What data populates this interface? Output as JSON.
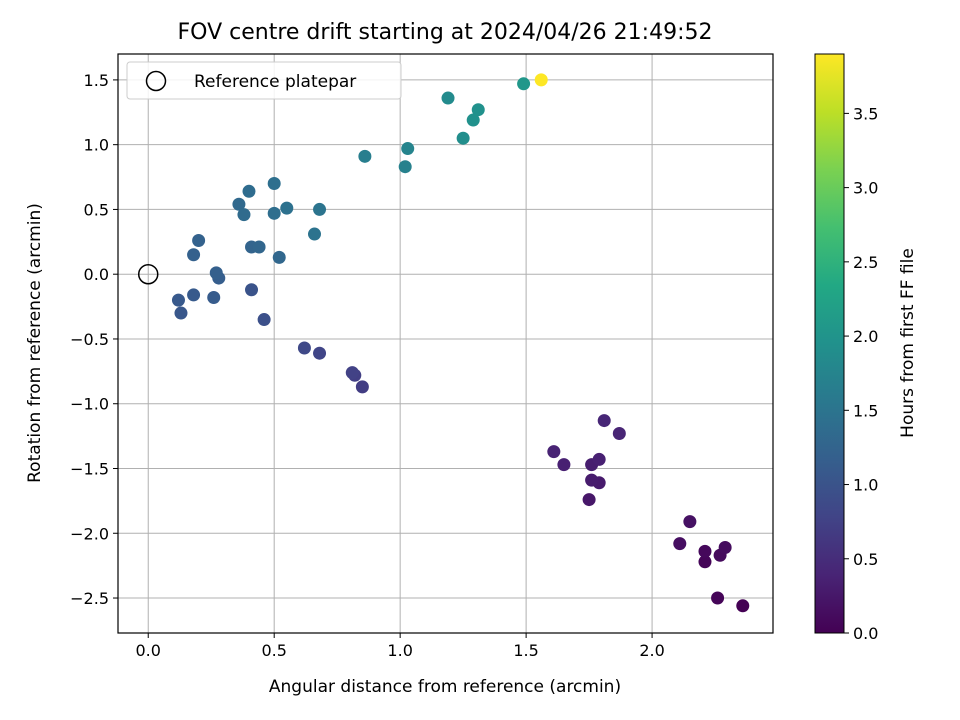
{
  "chart_data": {
    "type": "scatter",
    "title": "FOV centre drift starting at 2024/04/26 21:49:52",
    "xlabel": "Angular distance from reference (arcmin)",
    "ylabel": "Rotation from reference (arcmin)",
    "xlim": [
      -0.12,
      2.48
    ],
    "ylim": [
      -2.77,
      1.7
    ],
    "xticks": [
      0.0,
      0.5,
      1.0,
      1.5,
      2.0
    ],
    "xtick_labels": [
      "0.0",
      "0.5",
      "1.0",
      "1.5",
      "2.0"
    ],
    "yticks": [
      -2.5,
      -2.0,
      -1.5,
      -1.0,
      -0.5,
      0.0,
      0.5,
      1.0,
      1.5
    ],
    "ytick_labels": [
      "−2.5",
      "−2.0",
      "−1.5",
      "−1.0",
      "−0.5",
      "0.0",
      "0.5",
      "1.0",
      "1.5"
    ],
    "grid": true,
    "legend": {
      "placement": "top-left",
      "entries": [
        {
          "label": "Reference platepar",
          "marker": "open-circle"
        }
      ]
    },
    "reference_point": {
      "x": 0.0,
      "y": 0.0
    },
    "colorbar": {
      "label": "Hours from first FF file",
      "colormap": "viridis",
      "range": [
        0.0,
        3.9
      ],
      "ticks": [
        0.0,
        0.5,
        1.0,
        1.5,
        2.0,
        2.5,
        3.0,
        3.5
      ],
      "tick_labels": [
        "0.0",
        "0.5",
        "1.0",
        "1.5",
        "2.0",
        "2.5",
        "3.0",
        "3.5"
      ],
      "stops": [
        "#440154",
        "#482475",
        "#414487",
        "#355f8d",
        "#2a788e",
        "#21918c",
        "#22a884",
        "#44bf70",
        "#7ad151",
        "#bddf26",
        "#fde725"
      ]
    },
    "series": [
      {
        "points": [
          {
            "x": 2.36,
            "y": -2.56,
            "c": 0.0
          },
          {
            "x": 2.26,
            "y": -2.5,
            "c": 0.05
          },
          {
            "x": 2.21,
            "y": -2.22,
            "c": 0.05
          },
          {
            "x": 2.21,
            "y": -2.14,
            "c": 0.08
          },
          {
            "x": 2.27,
            "y": -2.17,
            "c": 0.1
          },
          {
            "x": 2.29,
            "y": -2.11,
            "c": 0.12
          },
          {
            "x": 2.11,
            "y": -2.08,
            "c": 0.15
          },
          {
            "x": 2.15,
            "y": -1.91,
            "c": 0.18
          },
          {
            "x": 1.75,
            "y": -1.74,
            "c": 0.25
          },
          {
            "x": 1.79,
            "y": -1.61,
            "c": 0.28
          },
          {
            "x": 1.76,
            "y": -1.59,
            "c": 0.3
          },
          {
            "x": 1.76,
            "y": -1.47,
            "c": 0.32
          },
          {
            "x": 1.65,
            "y": -1.47,
            "c": 0.35
          },
          {
            "x": 1.61,
            "y": -1.37,
            "c": 0.38
          },
          {
            "x": 1.79,
            "y": -1.43,
            "c": 0.35
          },
          {
            "x": 1.87,
            "y": -1.23,
            "c": 0.4
          },
          {
            "x": 1.81,
            "y": -1.13,
            "c": 0.42
          },
          {
            "x": 0.85,
            "y": -0.87,
            "c": 0.7
          },
          {
            "x": 0.82,
            "y": -0.78,
            "c": 0.72
          },
          {
            "x": 0.81,
            "y": -0.76,
            "c": 0.75
          },
          {
            "x": 0.68,
            "y": -0.61,
            "c": 0.8
          },
          {
            "x": 0.62,
            "y": -0.57,
            "c": 0.85
          },
          {
            "x": 0.46,
            "y": -0.35,
            "c": 0.95
          },
          {
            "x": 0.41,
            "y": -0.12,
            "c": 1.0
          },
          {
            "x": 0.13,
            "y": -0.3,
            "c": 1.05
          },
          {
            "x": 0.12,
            "y": -0.2,
            "c": 1.08
          },
          {
            "x": 0.18,
            "y": -0.16,
            "c": 1.1
          },
          {
            "x": 0.26,
            "y": -0.18,
            "c": 1.12
          },
          {
            "x": 0.28,
            "y": -0.03,
            "c": 1.15
          },
          {
            "x": 0.27,
            "y": 0.01,
            "c": 1.18
          },
          {
            "x": 0.18,
            "y": 0.15,
            "c": 1.2
          },
          {
            "x": 0.2,
            "y": 0.26,
            "c": 1.22
          },
          {
            "x": 0.41,
            "y": 0.21,
            "c": 1.25
          },
          {
            "x": 0.44,
            "y": 0.21,
            "c": 1.28
          },
          {
            "x": 0.52,
            "y": 0.13,
            "c": 1.3
          },
          {
            "x": 0.36,
            "y": 0.54,
            "c": 1.32
          },
          {
            "x": 0.38,
            "y": 0.46,
            "c": 1.35
          },
          {
            "x": 0.4,
            "y": 0.64,
            "c": 1.38
          },
          {
            "x": 0.5,
            "y": 0.47,
            "c": 1.4
          },
          {
            "x": 0.5,
            "y": 0.7,
            "c": 1.42
          },
          {
            "x": 0.55,
            "y": 0.51,
            "c": 1.45
          },
          {
            "x": 0.66,
            "y": 0.31,
            "c": 1.48
          },
          {
            "x": 0.68,
            "y": 0.5,
            "c": 1.5
          },
          {
            "x": 0.86,
            "y": 0.91,
            "c": 1.65
          },
          {
            "x": 1.02,
            "y": 0.83,
            "c": 1.7
          },
          {
            "x": 1.03,
            "y": 0.97,
            "c": 1.75
          },
          {
            "x": 1.19,
            "y": 1.36,
            "c": 1.85
          },
          {
            "x": 1.25,
            "y": 1.05,
            "c": 1.9
          },
          {
            "x": 1.29,
            "y": 1.19,
            "c": 1.95
          },
          {
            "x": 1.31,
            "y": 1.27,
            "c": 1.95
          },
          {
            "x": 1.49,
            "y": 1.47,
            "c": 2.05
          },
          {
            "x": 1.56,
            "y": 1.5,
            "c": 3.9
          }
        ]
      }
    ]
  }
}
